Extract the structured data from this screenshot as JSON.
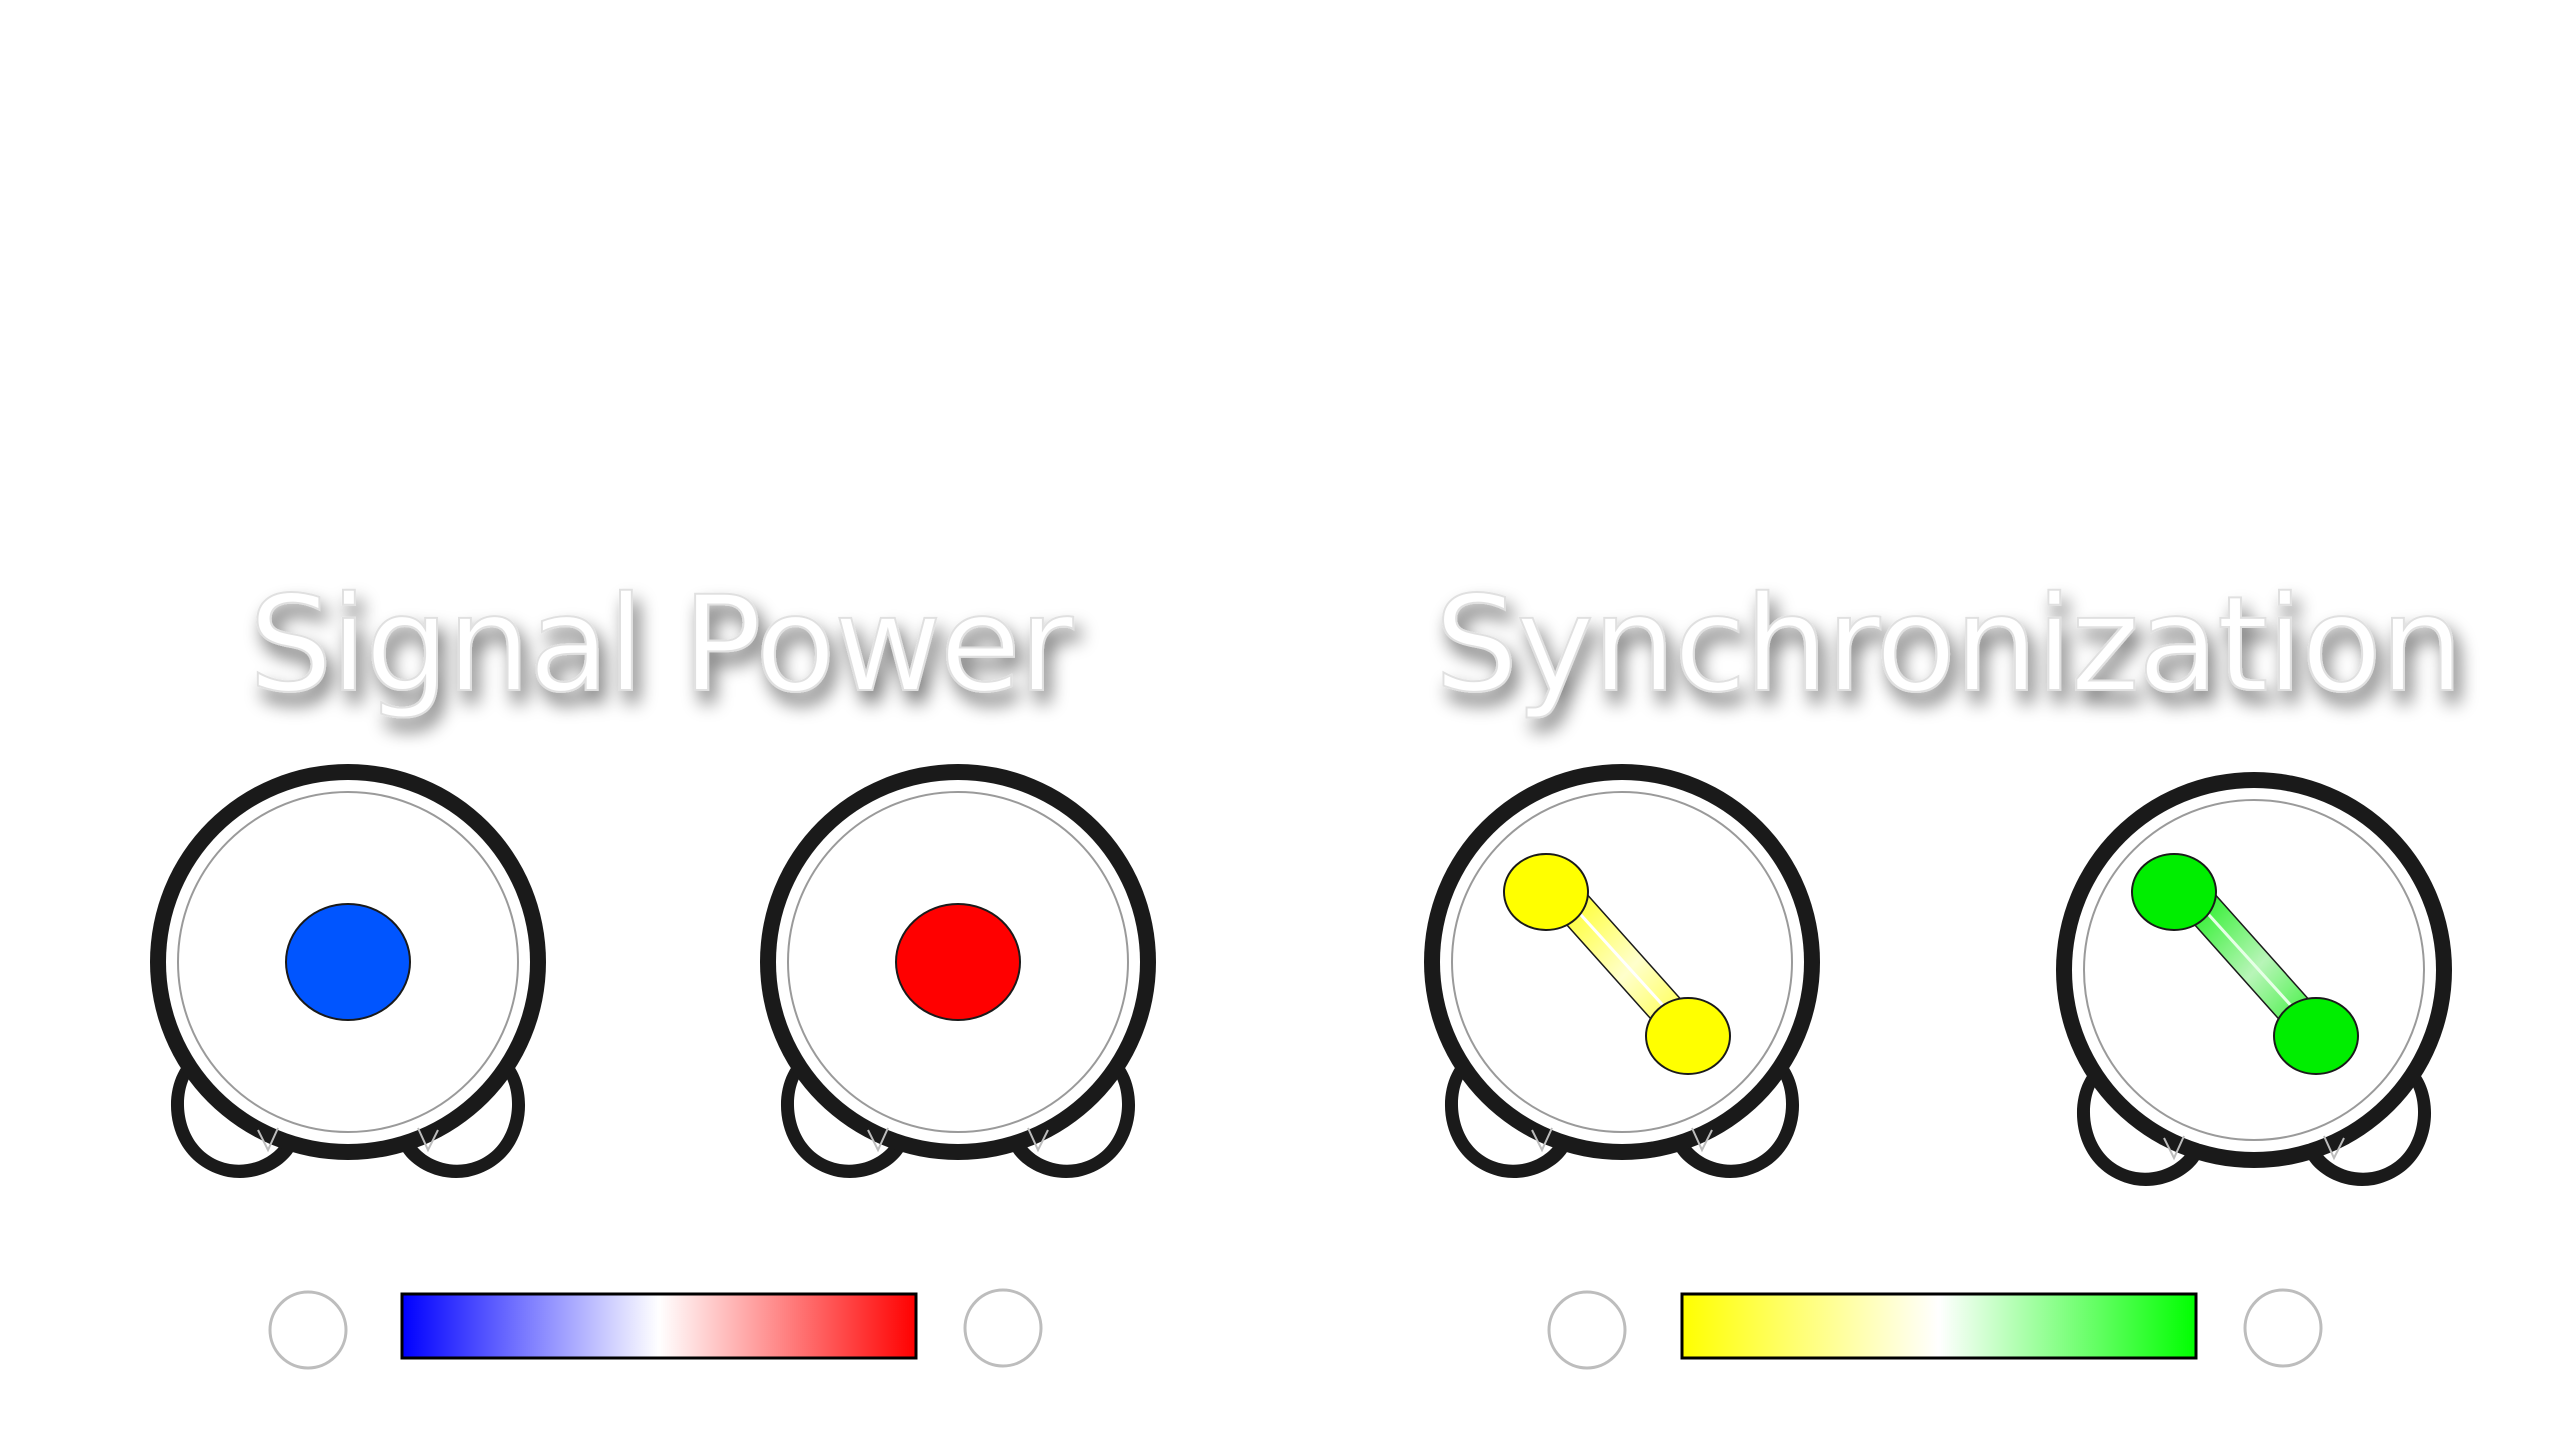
{
  "left_panel": {
    "title": "Signal Power",
    "head_1": {
      "feature": "dot",
      "color": "#0055ff"
    },
    "head_2": {
      "feature": "dot",
      "color": "#ff0000"
    },
    "colorbar": {
      "colors": [
        "#0000ff",
        "#ffffff",
        "#ff0000"
      ]
    }
  },
  "right_panel": {
    "title": "Synchronization",
    "head_1": {
      "feature": "link",
      "color": "#ffff00"
    },
    "head_2": {
      "feature": "link",
      "color": "#00ee00"
    },
    "colorbar": {
      "colors": [
        "#ffff00",
        "#ffffff",
        "#00ff00"
      ]
    }
  }
}
